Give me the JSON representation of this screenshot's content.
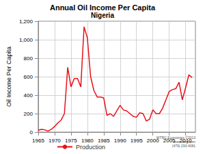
{
  "chart_data": {
    "type": "line",
    "title": "Annual Oil Income Per Capita",
    "subtitle": "Nigeria",
    "y_label": "Oil Income Per Capita",
    "x": [
      1965,
      1966,
      1967,
      1968,
      1969,
      1970,
      1971,
      1972,
      1973,
      1974,
      1975,
      1976,
      1977,
      1978,
      1979,
      1980,
      1981,
      1982,
      1983,
      1984,
      1985,
      1986,
      1987,
      1988,
      1989,
      1990,
      1991,
      1992,
      1993,
      1994,
      1995,
      1996,
      1997,
      1998,
      1999,
      2000,
      2001,
      2002,
      2003,
      2004,
      2005,
      2006,
      2007,
      2008,
      2009,
      2010,
      2011,
      2012
    ],
    "series": [
      {
        "name": "Production",
        "color": "#e8101a",
        "values": [
          20,
          30,
          25,
          10,
          30,
          60,
          100,
          130,
          200,
          700,
          490,
          580,
          580,
          490,
          1140,
          1020,
          600,
          450,
          380,
          380,
          370,
          180,
          200,
          170,
          230,
          290,
          240,
          230,
          200,
          170,
          160,
          210,
          200,
          120,
          140,
          240,
          200,
          200,
          260,
          350,
          440,
          460,
          470,
          540,
          350,
          480,
          620,
          590
        ]
      }
    ],
    "xlim": [
      1965,
      2013
    ],
    "xticks": [
      1965,
      1970,
      1975,
      1980,
      1985,
      1990,
      1995,
      2000,
      2005,
      2010
    ],
    "ylim": [
      0,
      1200
    ],
    "yticks": [
      0,
      200,
      400,
      600,
      800,
      {
        "value": 1000,
        "label": "1,000"
      },
      {
        "value": 1200,
        "label": "1,200"
      }
    ],
    "grid": true,
    "legend": "bottom",
    "annotations": [
      "WTRG Economics ©2013",
      "www.wtrg.com",
      "(479) 293-4081"
    ]
  }
}
